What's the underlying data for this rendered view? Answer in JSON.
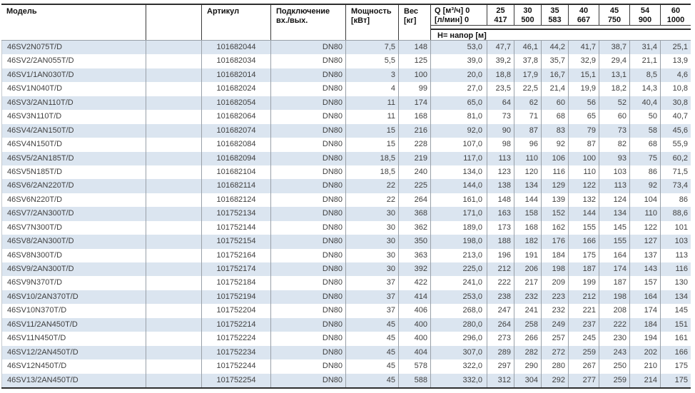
{
  "header": {
    "model": "Модель",
    "article": "Артикул",
    "connection_line1": "Подключение",
    "connection_line2": "вх./вых.",
    "power_line1": "Мощность",
    "power_line2": "[кВт]",
    "weight_line1": "Вес",
    "weight_line2": "[кг]",
    "q_line1": "Q [м³/ч] 0",
    "q_line2": "[л/мин] 0",
    "flow_m3h": [
      "25",
      "30",
      "35",
      "40",
      "45",
      "54",
      "60"
    ],
    "flow_lmin": [
      "417",
      "500",
      "583",
      "667",
      "750",
      "900",
      "1000"
    ],
    "head_row_label": "Н= напор [м]"
  },
  "colors": {
    "stripe_blue": "#dbe5f0",
    "border_dark": "#2e2e2e",
    "divider_gray": "#99a0a8",
    "text": "#3f3f3f"
  },
  "rows": [
    {
      "model": "46SV2N075T/D",
      "article": "101682044",
      "connection": "DN80",
      "power": "7,5",
      "weight": "148",
      "q0": "53,0",
      "h": [
        "47,7",
        "46,1",
        "44,2",
        "41,7",
        "38,7",
        "31,4",
        "25,1"
      ]
    },
    {
      "model": "46SV2/2AN055T/D",
      "article": "101682034",
      "connection": "DN80",
      "power": "5,5",
      "weight": "125",
      "q0": "39,0",
      "h": [
        "39,2",
        "37,8",
        "35,7",
        "32,9",
        "29,4",
        "21,1",
        "13,9"
      ]
    },
    {
      "model": "46SV1/1AN030T/D",
      "article": "101682014",
      "connection": "DN80",
      "power": "3",
      "weight": "100",
      "q0": "20,0",
      "h": [
        "18,8",
        "17,9",
        "16,7",
        "15,1",
        "13,1",
        "8,5",
        "4,6"
      ]
    },
    {
      "model": "46SV1N040T/D",
      "article": "101682024",
      "connection": "DN80",
      "power": "4",
      "weight": "99",
      "q0": "27,0",
      "h": [
        "23,5",
        "22,5",
        "21,4",
        "19,9",
        "18,2",
        "14,3",
        "10,8"
      ]
    },
    {
      "model": "46SV3/2AN110T/D",
      "article": "101682054",
      "connection": "DN80",
      "power": "11",
      "weight": "174",
      "q0": "65,0",
      "h": [
        "64",
        "62",
        "60",
        "56",
        "52",
        "40,4",
        "30,8"
      ]
    },
    {
      "model": "46SV3N110T/D",
      "article": "101682064",
      "connection": "DN80",
      "power": "11",
      "weight": "168",
      "q0": "81,0",
      "h": [
        "73",
        "71",
        "68",
        "65",
        "60",
        "50",
        "40,7"
      ]
    },
    {
      "model": "46SV4/2AN150T/D",
      "article": "101682074",
      "connection": "DN80",
      "power": "15",
      "weight": "216",
      "q0": "92,0",
      "h": [
        "90",
        "87",
        "83",
        "79",
        "73",
        "58",
        "45,6"
      ]
    },
    {
      "model": "46SV4N150T/D",
      "article": "101682084",
      "connection": "DN80",
      "power": "15",
      "weight": "228",
      "q0": "107,0",
      "h": [
        "98",
        "96",
        "92",
        "87",
        "82",
        "68",
        "55,9"
      ]
    },
    {
      "model": "46SV5/2AN185T/D",
      "article": "101682094",
      "connection": "DN80",
      "power": "18,5",
      "weight": "219",
      "q0": "117,0",
      "h": [
        "113",
        "110",
        "106",
        "100",
        "93",
        "75",
        "60,2"
      ]
    },
    {
      "model": "46SV5N185T/D",
      "article": "101682104",
      "connection": "DN80",
      "power": "18,5",
      "weight": "240",
      "q0": "134,0",
      "h": [
        "123",
        "120",
        "116",
        "110",
        "103",
        "86",
        "71,5"
      ]
    },
    {
      "model": "46SV6/2AN220T/D",
      "article": "101682114",
      "connection": "DN80",
      "power": "22",
      "weight": "225",
      "q0": "144,0",
      "h": [
        "138",
        "134",
        "129",
        "122",
        "113",
        "92",
        "73,4"
      ]
    },
    {
      "model": "46SV6N220T/D",
      "article": "101682124",
      "connection": "DN80",
      "power": "22",
      "weight": "264",
      "q0": "161,0",
      "h": [
        "148",
        "144",
        "139",
        "132",
        "124",
        "104",
        "86"
      ]
    },
    {
      "model": "46SV7/2AN300T/D",
      "article": "101752134",
      "connection": "DN80",
      "power": "30",
      "weight": "368",
      "q0": "171,0",
      "h": [
        "163",
        "158",
        "152",
        "144",
        "134",
        "110",
        "88,6"
      ]
    },
    {
      "model": "46SV7N300T/D",
      "article": "101752144",
      "connection": "DN80",
      "power": "30",
      "weight": "362",
      "q0": "189,0",
      "h": [
        "173",
        "168",
        "162",
        "155",
        "145",
        "122",
        "101"
      ]
    },
    {
      "model": "46SV8/2AN300T/D",
      "article": "101752154",
      "connection": "DN80",
      "power": "30",
      "weight": "350",
      "q0": "198,0",
      "h": [
        "188",
        "182",
        "176",
        "166",
        "155",
        "127",
        "103"
      ]
    },
    {
      "model": "46SV8N300T/D",
      "article": "101752164",
      "connection": "DN80",
      "power": "30",
      "weight": "363",
      "q0": "213,0",
      "h": [
        "196",
        "191",
        "184",
        "175",
        "164",
        "137",
        "113"
      ]
    },
    {
      "model": "46SV9/2AN300T/D",
      "article": "101752174",
      "connection": "DN80",
      "power": "30",
      "weight": "392",
      "q0": "225,0",
      "h": [
        "212",
        "206",
        "198",
        "187",
        "174",
        "143",
        "116"
      ]
    },
    {
      "model": "46SV9N370T/D",
      "article": "101752184",
      "connection": "DN80",
      "power": "37",
      "weight": "422",
      "q0": "241,0",
      "h": [
        "222",
        "217",
        "209",
        "199",
        "187",
        "157",
        "130"
      ]
    },
    {
      "model": "46SV10/2AN370T/D",
      "article": "101752194",
      "connection": "DN80",
      "power": "37",
      "weight": "414",
      "q0": "253,0",
      "h": [
        "238",
        "232",
        "223",
        "212",
        "198",
        "164",
        "134"
      ]
    },
    {
      "model": "46SV10N370T/D",
      "article": "101752204",
      "connection": "DN80",
      "power": "37",
      "weight": "406",
      "q0": "268,0",
      "h": [
        "247",
        "241",
        "232",
        "221",
        "208",
        "174",
        "145"
      ]
    },
    {
      "model": "46SV11/2AN450T/D",
      "article": "101752214",
      "connection": "DN80",
      "power": "45",
      "weight": "400",
      "q0": "280,0",
      "h": [
        "264",
        "258",
        "249",
        "237",
        "222",
        "184",
        "151"
      ]
    },
    {
      "model": "46SV11N450T/D",
      "article": "101752224",
      "connection": "DN80",
      "power": "45",
      "weight": "400",
      "q0": "296,0",
      "h": [
        "273",
        "266",
        "257",
        "245",
        "230",
        "194",
        "161"
      ]
    },
    {
      "model": "46SV12/2AN450T/D",
      "article": "101752234",
      "connection": "DN80",
      "power": "45",
      "weight": "404",
      "q0": "307,0",
      "h": [
        "289",
        "282",
        "272",
        "259",
        "243",
        "202",
        "166"
      ]
    },
    {
      "model": "46SV12N450T/D",
      "article": "101752244",
      "connection": "DN80",
      "power": "45",
      "weight": "578",
      "q0": "322,0",
      "h": [
        "297",
        "290",
        "280",
        "267",
        "250",
        "210",
        "175"
      ]
    },
    {
      "model": "46SV13/2AN450T/D",
      "article": "101752254",
      "connection": "DN80",
      "power": "45",
      "weight": "588",
      "q0": "332,0",
      "h": [
        "312",
        "304",
        "292",
        "277",
        "259",
        "214",
        "175"
      ]
    }
  ]
}
